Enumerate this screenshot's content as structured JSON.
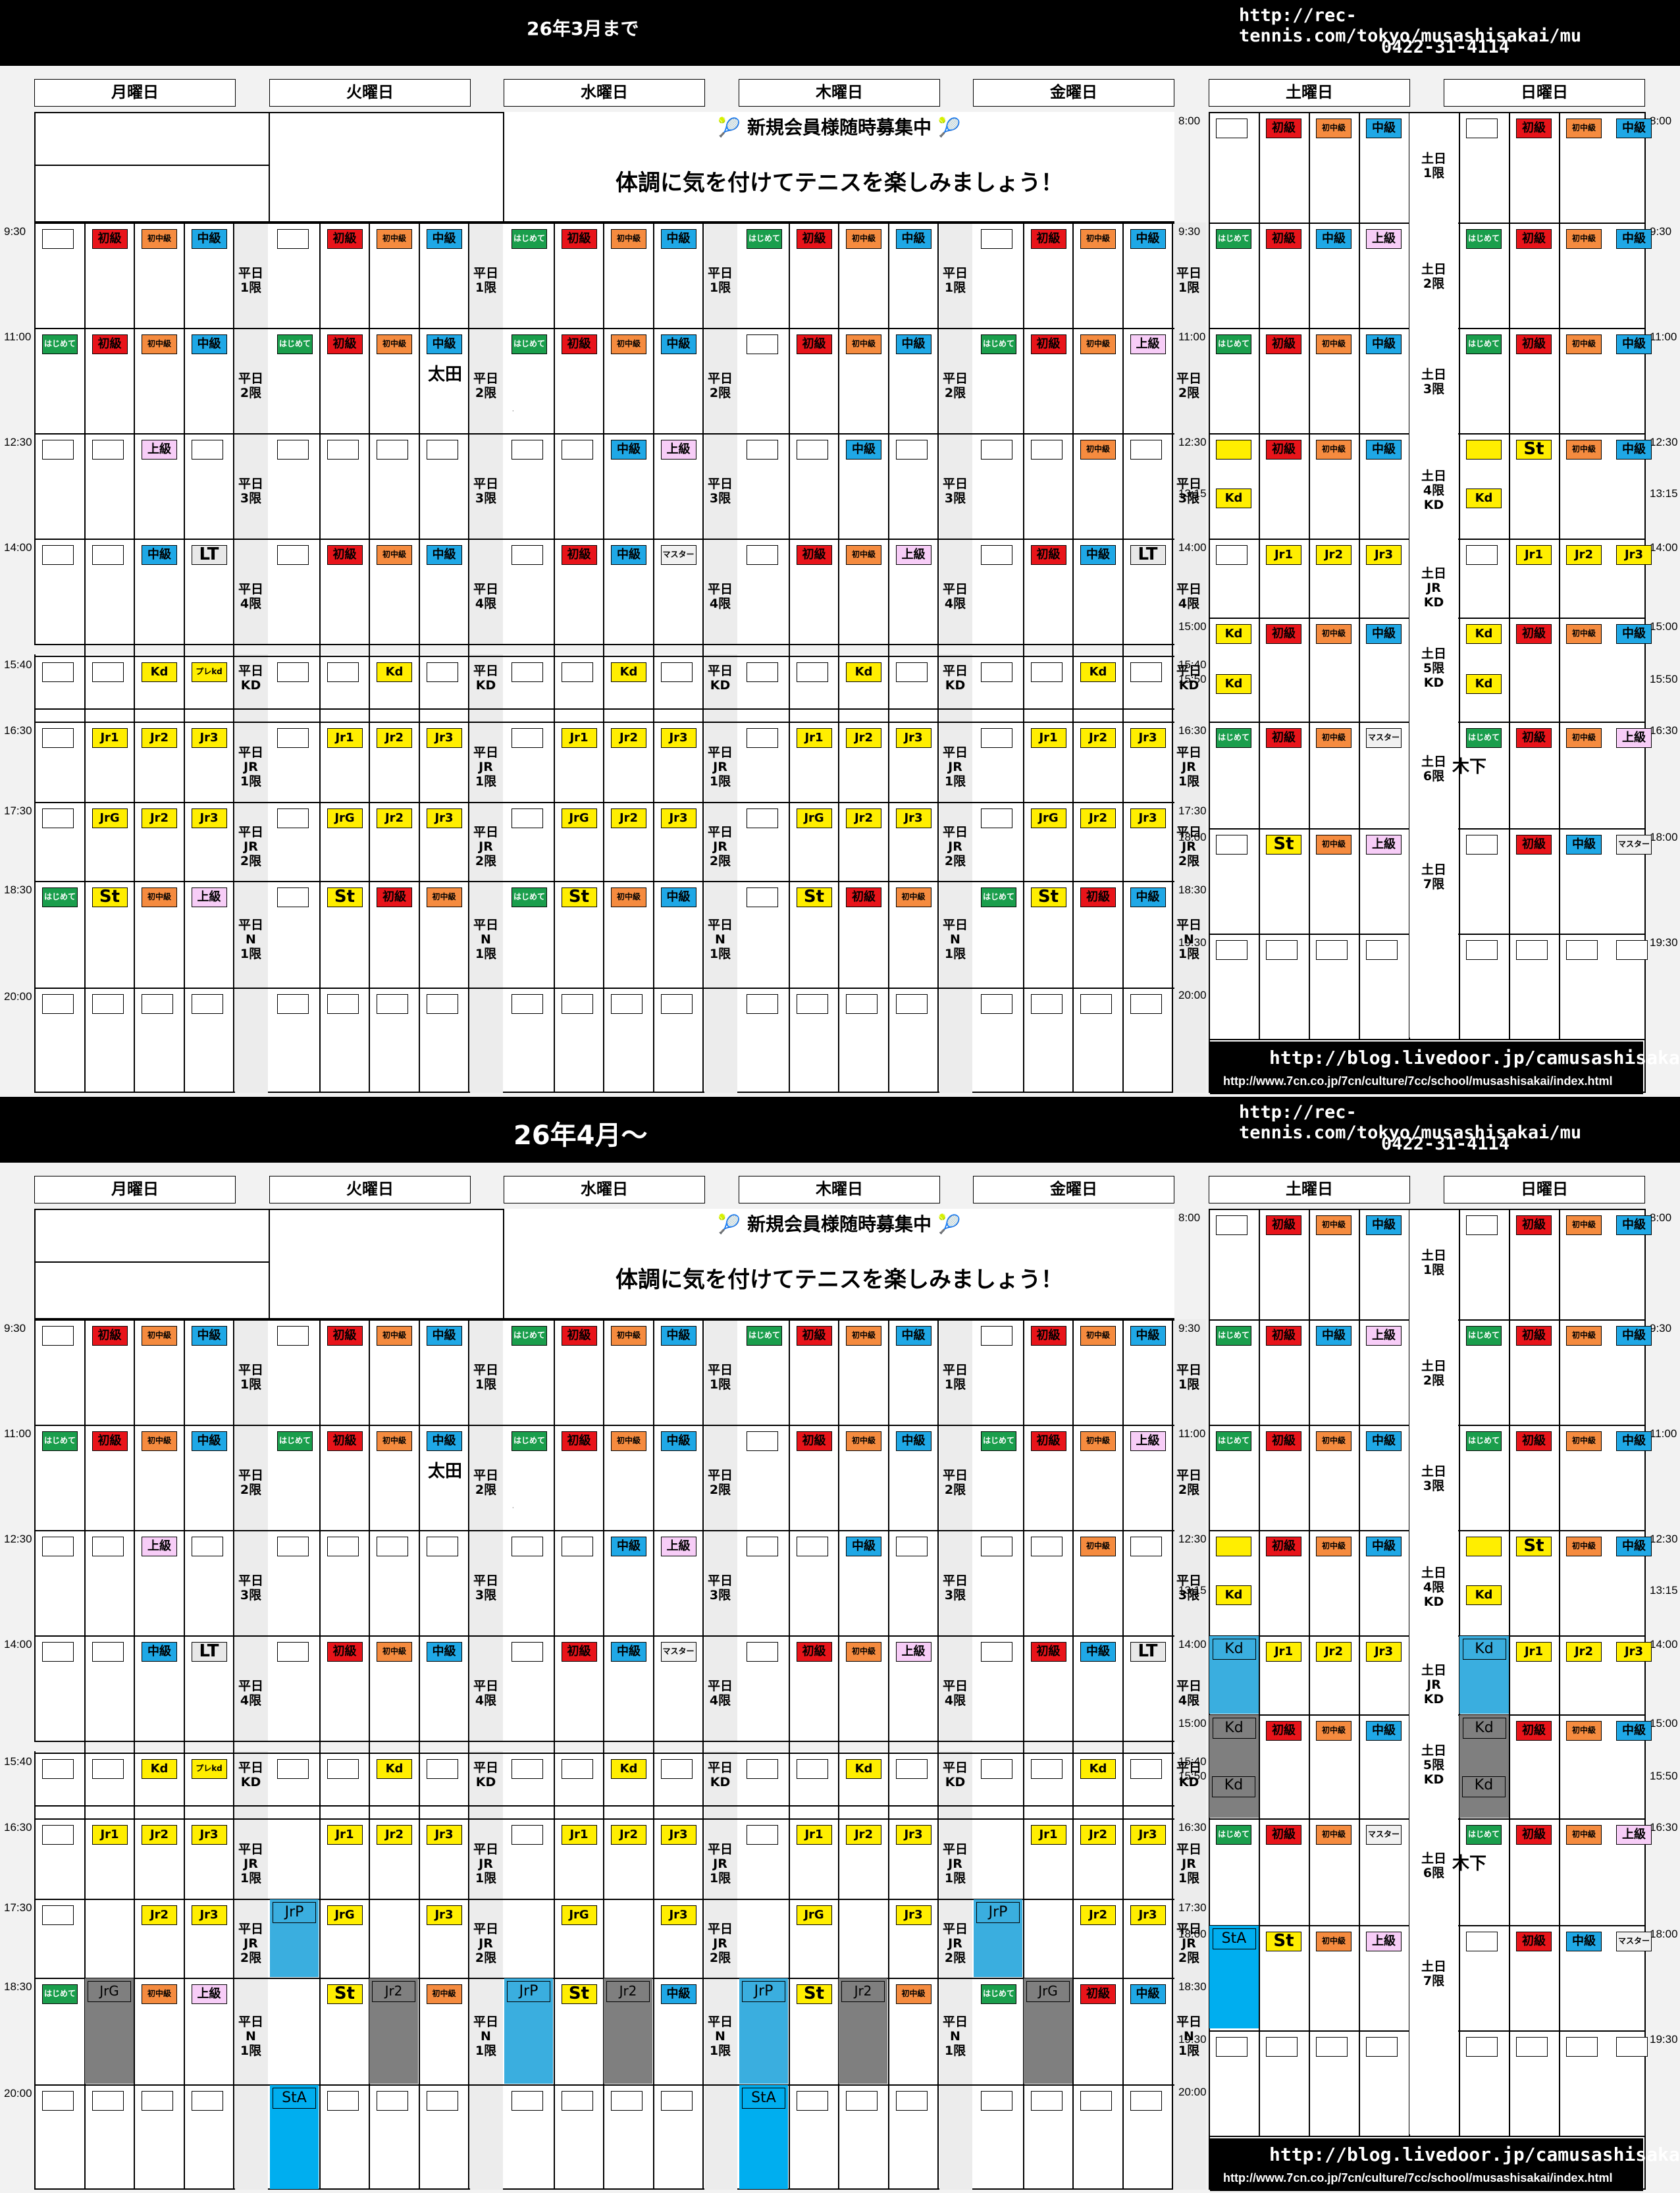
{
  "sections": [
    {
      "title": "26年3月まで",
      "url": "http://rec-tennis.com/tokyo/musashisakai/mu",
      "phone": "0422-31-4114"
    },
    {
      "title": "26年4月～",
      "url": "http://rec-tennis.com/tokyo/musashisakai/mu",
      "phone": "0422-31-4114"
    }
  ],
  "days": [
    "月曜日",
    "火曜日",
    "水曜日",
    "木曜日",
    "金曜日",
    "土曜日",
    "日曜日"
  ],
  "notice": {
    "line1": "新規会員様随時募集中",
    "line2": "体調に気を付けてテニスを楽しみましょう！"
  },
  "weekday_times": [
    "9:30",
    "11:00",
    "12:30",
    "14:00",
    "15:40",
    "16:30",
    "17:30",
    "18:30",
    "20:00"
  ],
  "weekday_period_labels": [
    "平日\n1限",
    "平日\n2限",
    "平日\n3限",
    "平日\n4限",
    "平日\nKD",
    "平日\nJR\n1限",
    "平日\nJR\n2限",
    "平日\nN\n1限"
  ],
  "weekend_times_left": [
    "8:00",
    "9:30",
    "11:00",
    "12:30",
    "13:15",
    "14:00",
    "15:00",
    "15:40",
    "15:50",
    "16:30",
    "17:30",
    "18:00",
    "18:30",
    "19:30",
    "20:00"
  ],
  "weekend_times_right": [
    "8:00",
    "9:30",
    "11:00",
    "12:30",
    "13:15",
    "14:00",
    "15:00",
    "15:50",
    "16:30",
    "18:00",
    "19:30"
  ],
  "weekend_period_labels": [
    "土日\n1限",
    "土日\n2限",
    "土日\n3限",
    "土日\n4限\nKD",
    "土日\nJR\nKD",
    "土日\n5限\nKD",
    "土日\n6限",
    "土日\n7限"
  ],
  "coach_names": {
    "tue_2": "太田",
    "sun_6": "木下"
  },
  "class_labels": {
    "beginner": "初級",
    "beg_int": "初中級",
    "intermediate": "中級",
    "advanced": "上級",
    "first_time": "はじめて",
    "master": "マスター",
    "lt": "LT",
    "kd": "Kd",
    "pre_kd": "プレkd",
    "jr1": "Jr1",
    "jr2": "Jr2",
    "jr3": "Jr3",
    "jrg": "JrG",
    "st": "St",
    "jrp": "JrP",
    "sta": "StA"
  },
  "banner": {
    "blog": "http://blog.livedoor.jp/camusashisakai/",
    "site": "http://www.7cn.co.jp/7cn/culture/7cc/school/musashisakai/index.html"
  },
  "colors": {
    "beginner": "#e8141a",
    "beg_int": "#f58b3f",
    "intermediate": "#1fa8e6",
    "first_time": "#1a9e4c",
    "advanced": "#f7cdf7",
    "junior": "#ffee00",
    "grey": "#7f7f7f",
    "highlight": "#00aeef"
  }
}
